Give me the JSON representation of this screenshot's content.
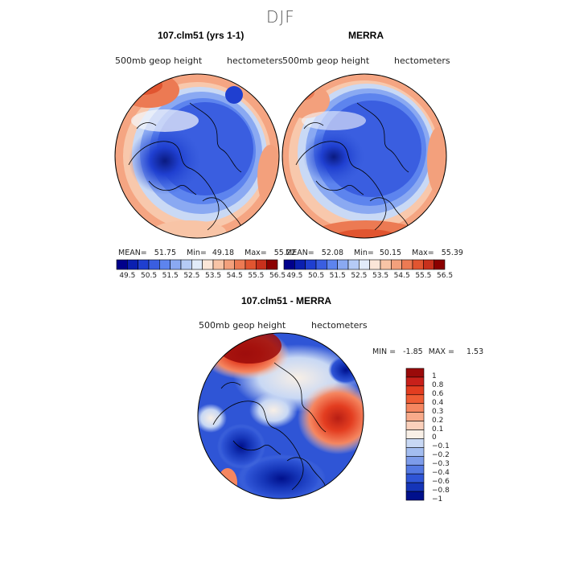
{
  "season": "DJF",
  "top_left": {
    "title": "107.clm51 (yrs 1-1)",
    "variable": "500mb geop height",
    "units": "hectometers",
    "mean_label": "MEAN=",
    "mean": "51.75",
    "min_label": "Min=",
    "min": "49.18",
    "max_label": "Max=",
    "max": "55.22"
  },
  "top_right": {
    "title": "MERRA",
    "variable": "500mb geop height",
    "units": "hectometers",
    "mean_label": "MEAN=",
    "mean": "52.08",
    "min_label": "Min=",
    "min": "50.15",
    "max_label": "Max=",
    "max": "55.39"
  },
  "bottom": {
    "title": "107.clm51 - MERRA",
    "variable": "500mb geop height",
    "units": "hectometers",
    "min_label": "MIN =",
    "min": "-1.85",
    "max_label": "MAX =",
    "max": "1.53"
  },
  "colorbar_top": {
    "ticks": [
      "49.5",
      "50.5",
      "51.5",
      "52.5",
      "53.5",
      "54.5",
      "55.5",
      "56.5"
    ],
    "colors": [
      "#00008b",
      "#0a1fb0",
      "#1f3fd0",
      "#3a5ee0",
      "#5d84ee",
      "#8aa9f2",
      "#b5cbf6",
      "#e1ebfa",
      "#fbe6d8",
      "#f8c4a6",
      "#f3a07c",
      "#ec7a53",
      "#e15530",
      "#c8301c",
      "#8b0000"
    ]
  },
  "colorbar_diff": {
    "ticks": [
      "1",
      "0.8",
      "0.6",
      "0.4",
      "0.3",
      "0.2",
      "0.1",
      "0",
      "−0.1",
      "−0.2",
      "−0.3",
      "−0.4",
      "−0.6",
      "−0.8",
      "−1"
    ],
    "colors": [
      "#9a0a0a",
      "#c8201a",
      "#e33d20",
      "#ef5c34",
      "#f58660",
      "#f8aa8a",
      "#fbd0bb",
      "#f8efe6",
      "#c8d8f4",
      "#a3bdf0",
      "#7d9cea",
      "#5479e2",
      "#2f55d6",
      "#1535b8",
      "#00108c"
    ]
  }
}
